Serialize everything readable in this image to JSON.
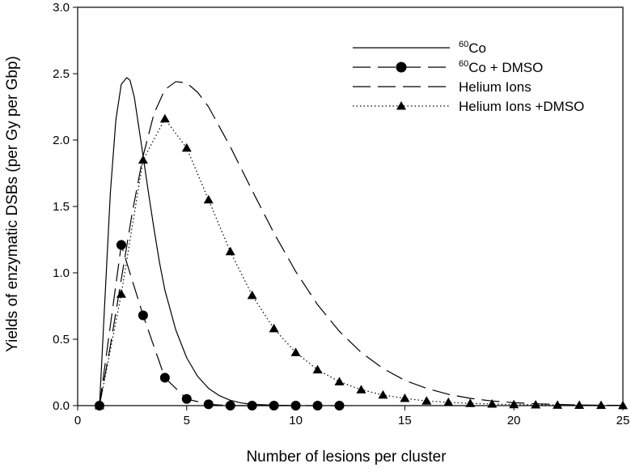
{
  "chart_data": {
    "type": "line",
    "title": "",
    "xlabel": "Number of lesions per cluster",
    "ylabel": "Yields of enzymatic DSBs (per Gy per Gbp)",
    "xlim": [
      0,
      25
    ],
    "ylim": [
      0,
      3.0
    ],
    "xticks": [
      "0",
      "5",
      "10",
      "15",
      "20",
      "25"
    ],
    "yticks": [
      "0.0",
      "0.5",
      "1.0",
      "1.5",
      "2.0",
      "2.5",
      "3.0"
    ],
    "grid": false,
    "legend_position": "top-right",
    "legend": [
      {
        "sup": "60",
        "text": "Co",
        "line": "solid",
        "marker": "none"
      },
      {
        "sup": "60",
        "text": "Co + DMSO",
        "line": "long-dash",
        "marker": "circle"
      },
      {
        "sup": "",
        "text": "Helium Ions",
        "line": "long-dash",
        "marker": "none"
      },
      {
        "sup": "",
        "text": "Helium Ions +DMSO",
        "line": "dotted",
        "marker": "triangle"
      }
    ],
    "series": [
      {
        "name": "60Co",
        "line": "solid",
        "marker": "none",
        "x": [
          1,
          1.25,
          1.5,
          1.75,
          2,
          2.25,
          2.4,
          2.6,
          2.8,
          3,
          3.25,
          3.5,
          3.75,
          4,
          4.5,
          5,
          5.5,
          6,
          6.5,
          7,
          7.5,
          8,
          9,
          10
        ],
        "y": [
          0,
          0.8,
          1.6,
          2.15,
          2.42,
          2.47,
          2.45,
          2.32,
          2.1,
          1.88,
          1.6,
          1.33,
          1.08,
          0.87,
          0.57,
          0.36,
          0.22,
          0.13,
          0.075,
          0.04,
          0.02,
          0.01,
          0.003,
          0
        ]
      },
      {
        "name": "60Co + DMSO",
        "line": "long-dash",
        "marker": "circle",
        "x": [
          1,
          2,
          3,
          4,
          5,
          6,
          7,
          8,
          9,
          10,
          11,
          12
        ],
        "y": [
          0.0,
          1.21,
          0.68,
          0.21,
          0.05,
          0.01,
          0.0,
          0.0,
          0.0,
          0.0,
          0.0,
          0.0
        ]
      },
      {
        "name": "Helium Ions",
        "line": "long-dash",
        "marker": "none",
        "x": [
          1,
          1.5,
          2,
          2.5,
          3,
          3.5,
          4,
          4.5,
          5,
          5.5,
          6,
          7,
          8,
          9,
          10,
          11,
          12,
          13,
          14,
          15,
          16,
          17,
          18,
          19,
          20,
          21,
          22,
          23,
          24,
          25
        ],
        "y": [
          0,
          0.45,
          0.95,
          1.45,
          1.88,
          2.2,
          2.38,
          2.44,
          2.43,
          2.36,
          2.25,
          1.95,
          1.62,
          1.3,
          1.01,
          0.76,
          0.56,
          0.4,
          0.28,
          0.19,
          0.13,
          0.085,
          0.055,
          0.035,
          0.022,
          0.014,
          0.009,
          0.005,
          0.003,
          0.002
        ]
      },
      {
        "name": "Helium Ions +DMSO",
        "line": "dotted",
        "marker": "triangle",
        "x": [
          1,
          2,
          3,
          4,
          5,
          6,
          7,
          8,
          9,
          10,
          11,
          12,
          13,
          14,
          15,
          16,
          17,
          18,
          19,
          20,
          21,
          22,
          23,
          24,
          25
        ],
        "y": [
          0.0,
          0.84,
          1.85,
          2.16,
          1.94,
          1.55,
          1.16,
          0.83,
          0.58,
          0.4,
          0.27,
          0.18,
          0.12,
          0.08,
          0.055,
          0.035,
          0.025,
          0.017,
          0.012,
          0.008,
          0.006,
          0.004,
          0.003,
          0.002,
          0.001
        ]
      }
    ]
  }
}
